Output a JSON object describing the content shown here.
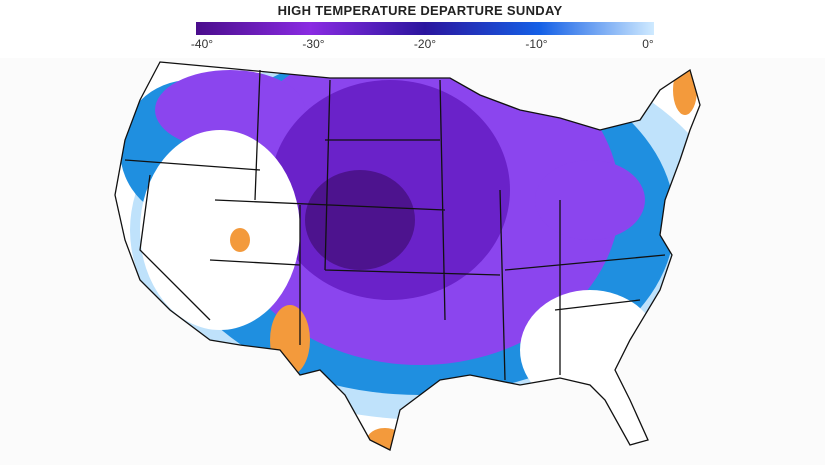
{
  "legend": {
    "title": "HIGH TEMPERATURE DEPARTURE SUNDAY",
    "ticks": [
      "-40°",
      "-30°",
      "-20°",
      "-10°",
      "0°"
    ]
  }
}
